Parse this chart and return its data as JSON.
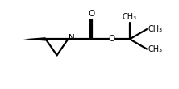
{
  "bg_color": "#ffffff",
  "line_color": "#000000",
  "bond_width": 1.6,
  "font_size_atom": 7.5,
  "figsize": [
    2.22,
    1.1
  ],
  "dpi": 100,
  "xlim": [
    0,
    10
  ],
  "ylim": [
    0,
    4.5
  ]
}
